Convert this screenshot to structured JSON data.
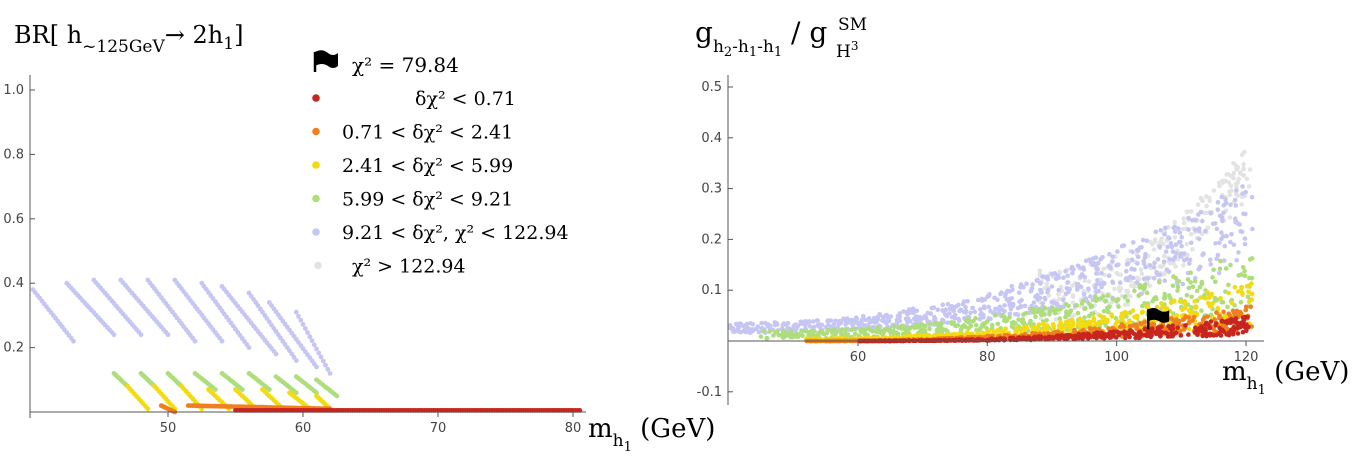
{
  "colors": {
    "red": "#c8251e",
    "orange": "#f07f1f",
    "yellow": "#f3db12",
    "green": "#aedd7c",
    "lavender": "#c6c6f4",
    "gray": "#e3e3e3",
    "axis": "#555555"
  },
  "legend": {
    "flag_label": "χ² = 79.84",
    "items": [
      {
        "color_key": "red",
        "text": "δχ² < 0.71"
      },
      {
        "color_key": "orange",
        "text": "0.71 < δχ² < 2.41"
      },
      {
        "color_key": "yellow",
        "text": "2.41 < δχ² < 5.99"
      },
      {
        "color_key": "green",
        "text": "5.99 < δχ² < 9.21"
      },
      {
        "color_key": "lavender",
        "text": "9.21 < δχ², χ² < 122.94"
      },
      {
        "color_key": "gray",
        "text": "χ² > 122.94"
      }
    ]
  },
  "chart_data": [
    {
      "type": "scatter",
      "title": "BR[ h~125GeV → 2h1]",
      "xlabel": "m_h1 (GeV)",
      "ylabel": "BR[ h~125GeV → 2h1]",
      "xlim": [
        40,
        80.5
      ],
      "ylim": [
        0,
        1.05
      ],
      "xticks": [
        50,
        60,
        70,
        80
      ],
      "yticks": [
        0.2,
        0.4,
        0.6,
        0.8,
        1.0
      ],
      "series": [
        {
          "color_key": "lavender",
          "bands": [
            {
              "x": [
                40,
                43
              ],
              "y": [
                0.38,
                0.22
              ]
            },
            {
              "x": [
                42.5,
                46
              ],
              "y": [
                0.4,
                0.24
              ]
            },
            {
              "x": [
                44.5,
                48
              ],
              "y": [
                0.41,
                0.24
              ]
            },
            {
              "x": [
                46.5,
                50
              ],
              "y": [
                0.41,
                0.24
              ]
            },
            {
              "x": [
                48.5,
                52
              ],
              "y": [
                0.41,
                0.22
              ]
            },
            {
              "x": [
                50.5,
                54
              ],
              "y": [
                0.41,
                0.22
              ]
            },
            {
              "x": [
                52.5,
                56
              ],
              "y": [
                0.4,
                0.2
              ]
            },
            {
              "x": [
                54,
                58
              ],
              "y": [
                0.39,
                0.18
              ]
            },
            {
              "x": [
                56,
                59.5
              ],
              "y": [
                0.37,
                0.16
              ]
            },
            {
              "x": [
                57.5,
                61
              ],
              "y": [
                0.34,
                0.14
              ]
            },
            {
              "x": [
                59.5,
                62
              ],
              "y": [
                0.31,
                0.12
              ]
            }
          ]
        },
        {
          "color_key": "green",
          "bands": [
            {
              "x": [
                46,
                47
              ],
              "y": [
                0.12,
                0.08
              ]
            },
            {
              "x": [
                48,
                49
              ],
              "y": [
                0.12,
                0.08
              ]
            },
            {
              "x": [
                50,
                51
              ],
              "y": [
                0.12,
                0.08
              ]
            },
            {
              "x": [
                52,
                53.5
              ],
              "y": [
                0.12,
                0.07
              ]
            },
            {
              "x": [
                54,
                55.5
              ],
              "y": [
                0.12,
                0.07
              ]
            },
            {
              "x": [
                56,
                57.5
              ],
              "y": [
                0.12,
                0.07
              ]
            },
            {
              "x": [
                58,
                59.5
              ],
              "y": [
                0.11,
                0.06
              ]
            },
            {
              "x": [
                59.5,
                61
              ],
              "y": [
                0.11,
                0.06
              ]
            },
            {
              "x": [
                61,
                62.5
              ],
              "y": [
                0.1,
                0.05
              ]
            }
          ]
        },
        {
          "color_key": "yellow",
          "bands": [
            {
              "x": [
                47,
                48.5
              ],
              "y": [
                0.08,
                0.01
              ]
            },
            {
              "x": [
                49,
                50.5
              ],
              "y": [
                0.08,
                0.01
              ]
            },
            {
              "x": [
                51,
                52.5
              ],
              "y": [
                0.08,
                0.01
              ]
            },
            {
              "x": [
                53,
                54.5
              ],
              "y": [
                0.07,
                0.01
              ]
            },
            {
              "x": [
                55,
                56.5
              ],
              "y": [
                0.07,
                0.01
              ]
            },
            {
              "x": [
                57,
                58.5
              ],
              "y": [
                0.07,
                0.01
              ]
            },
            {
              "x": [
                59,
                60.5
              ],
              "y": [
                0.06,
                0.01
              ]
            },
            {
              "x": [
                61,
                62
              ],
              "y": [
                0.05,
                0.01
              ]
            }
          ]
        },
        {
          "color_key": "orange",
          "bands": [
            {
              "x": [
                49.5,
                50.5
              ],
              "y": [
                0.02,
                0.0
              ]
            },
            {
              "x": [
                51.5,
                62
              ],
              "y": [
                0.02,
                0.01
              ]
            }
          ]
        },
        {
          "color_key": "red",
          "bands": [
            {
              "x": [
                55,
                80.5
              ],
              "y": [
                0.005,
                0.005
              ]
            }
          ]
        }
      ]
    },
    {
      "type": "scatter",
      "title": "g_h2-h1-h1 / g^SM_H3",
      "xlabel": "m_h1 (GeV)",
      "ylabel": "g_h2-h1-h1 / g^SM_H3",
      "xlim": [
        40,
        121
      ],
      "ylim": [
        -0.12,
        0.52
      ],
      "xticks": [
        60,
        80,
        100,
        120
      ],
      "yticks": [
        -0.1,
        0.1,
        0.2,
        0.3,
        0.4,
        0.5
      ],
      "flag_point": {
        "x": 105.5,
        "y": 0.035
      },
      "series": [
        {
          "color_key": "gray",
          "bands": [
            {
              "x": [
                88,
                121
              ],
              "y": [
                0.14,
                0.4
              ]
            }
          ]
        },
        {
          "color_key": "lavender",
          "bands": [
            {
              "x": [
                40,
                121
              ],
              "y": [
                0.035,
                0.32
              ]
            }
          ]
        },
        {
          "color_key": "green",
          "bands": [
            {
              "x": [
                45,
                121
              ],
              "y": [
                0.02,
                0.18
              ]
            }
          ]
        },
        {
          "color_key": "yellow",
          "bands": [
            {
              "x": [
                52,
                121
              ],
              "y": [
                0.005,
                0.12
              ]
            }
          ]
        },
        {
          "color_key": "orange",
          "bands": [
            {
              "x": [
                52,
                121
              ],
              "y": [
                0.0,
                0.07
              ]
            }
          ]
        },
        {
          "color_key": "red",
          "bands": [
            {
              "x": [
                60,
                121
              ],
              "y": [
                0.0,
                0.05
              ]
            }
          ]
        }
      ]
    }
  ]
}
